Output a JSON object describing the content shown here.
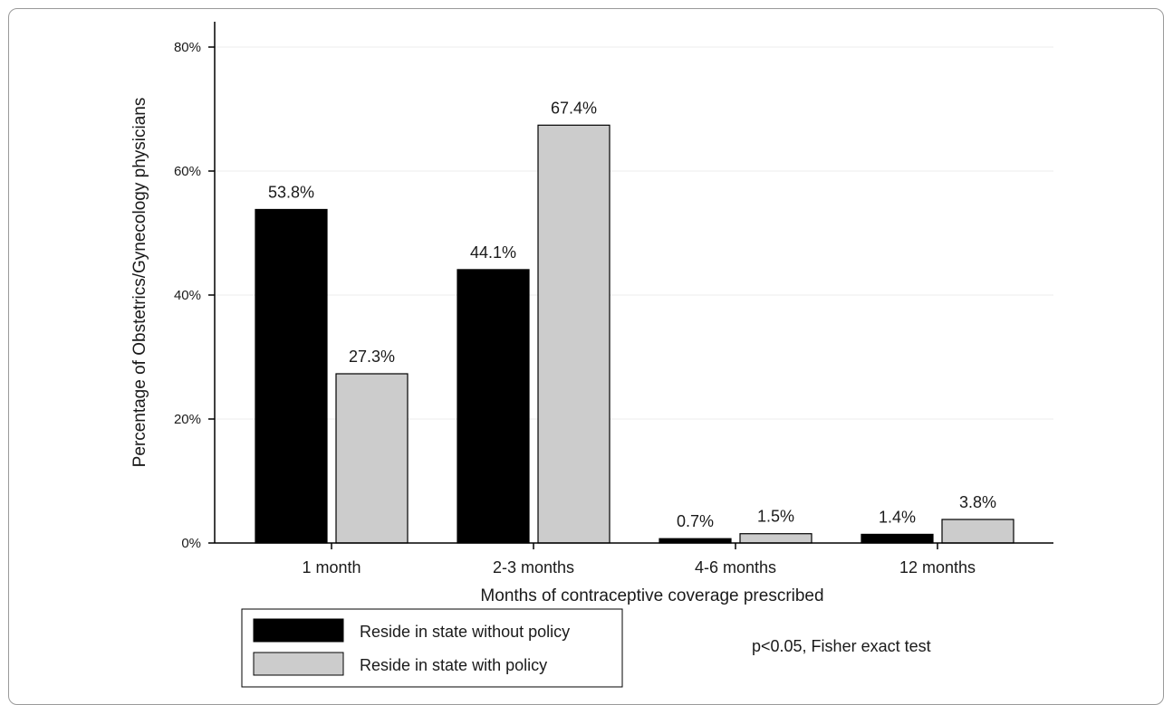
{
  "chart_data": {
    "type": "bar",
    "title": "",
    "xlabel": "Months of contraceptive coverage prescribed",
    "ylabel": "Percentage of Obstetrics/Gynecology physicians",
    "ylim": [
      0,
      80
    ],
    "yticks": [
      0,
      20,
      40,
      60,
      80
    ],
    "ytick_labels": [
      "0%",
      "20%",
      "40%",
      "60%",
      "80%"
    ],
    "grid": "horizontal",
    "categories": [
      "1 month",
      "2-3 months",
      "4-6 months",
      "12 months"
    ],
    "series": [
      {
        "name": "Reside in state without policy",
        "color": "#000000",
        "values": [
          53.8,
          44.1,
          0.7,
          1.4
        ],
        "labels": [
          "53.8%",
          "44.1%",
          "0.7%",
          "1.4%"
        ]
      },
      {
        "name": "Reside in state with policy",
        "color": "#cccccc",
        "values": [
          27.3,
          67.4,
          1.5,
          3.8
        ],
        "labels": [
          "27.3%",
          "67.4%",
          "1.5%",
          "3.8%"
        ]
      }
    ],
    "legend_position": "bottom-left",
    "annotation": "p<0.05, Fisher exact test"
  }
}
